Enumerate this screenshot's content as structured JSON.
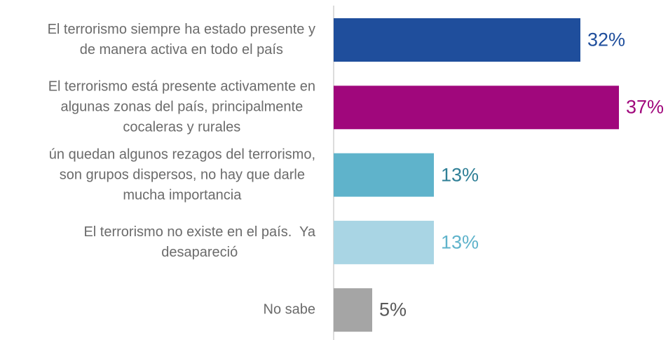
{
  "chart_data": {
    "type": "hbar",
    "categories": [
      "El terrorismo siempre ha estado presente y\nde manera activa en todo el país",
      "El terrorismo está presente activamente en\nalgunas zonas del país, principalmente\ncocaleras y rurales",
      "ún quedan algunos rezagos del terrorismo,\nson grupos dispersos, no hay que darle\nmucha importancia",
      "El terrorismo no existe en el país.  Ya\ndesapareció",
      "No sabe"
    ],
    "values": [
      32,
      37,
      13,
      13,
      5
    ],
    "value_labels": [
      "32%",
      "37%",
      "13%",
      "13%",
      "5%"
    ],
    "colors": [
      "#1f4e9c",
      "#a0077c",
      "#5fb3cb",
      "#a9d5e4",
      "#a5a5a5"
    ],
    "label_colors": [
      "#1f4e9c",
      "#a0077c",
      "#2f7f96",
      "#5fb3cb",
      "#595959"
    ],
    "xlim": [
      0,
      43
    ]
  }
}
